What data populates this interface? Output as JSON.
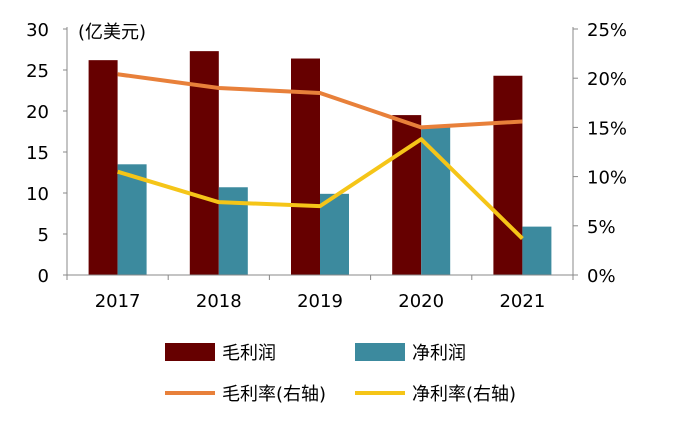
{
  "chart_data": {
    "type": "bar+line",
    "unit_label": "(亿美元)",
    "categories": [
      "2017",
      "2018",
      "2019",
      "2020",
      "2021"
    ],
    "left_axis": {
      "range": [
        0,
        30
      ],
      "ticks": [
        "0",
        "5",
        "10",
        "15",
        "20",
        "25",
        "30"
      ]
    },
    "right_axis": {
      "range": [
        0,
        25
      ],
      "ticks": [
        "0%",
        "5%",
        "10%",
        "15%",
        "20%",
        "25%"
      ]
    },
    "series": [
      {
        "name": "毛利润",
        "type": "bar",
        "axis": "left",
        "color": "#660000",
        "values": [
          26.2,
          27.3,
          26.4,
          19.5,
          24.3
        ]
      },
      {
        "name": "净利润",
        "type": "bar",
        "axis": "left",
        "color": "#3C8A9E",
        "values": [
          13.5,
          10.7,
          9.9,
          18.1,
          5.9
        ]
      },
      {
        "name": "毛利率(右轴)",
        "type": "line",
        "axis": "right",
        "color": "#E8803A",
        "values": [
          20.4,
          19.0,
          18.5,
          15.0,
          15.6
        ]
      },
      {
        "name": "净利率(右轴)",
        "type": "line",
        "axis": "right",
        "color": "#F5C518",
        "values": [
          10.5,
          7.4,
          7.0,
          13.8,
          3.7
        ]
      }
    ],
    "legend_position": "bottom",
    "grid": false
  }
}
